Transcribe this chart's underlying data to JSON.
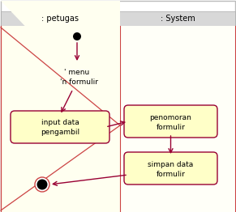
{
  "bg_color": "#ffffff",
  "header_bg": "#d3d3d3",
  "petugas_label": ": petugas",
  "system_label": ": System",
  "activity_bg": "#ffffc8",
  "activity_border": "#990033",
  "arrow_color": "#990033",
  "divider_color": "#cc4444",
  "triangle_fill": "#fffff0",
  "menu_line1": "' menu",
  "menu_line2": "'n formulir",
  "input_line1": "input data",
  "input_line2": "pengambil",
  "penomoran_line1": "penomoran",
  "penomoran_line2": "formulir",
  "simpan_line1": "simpan data",
  "simpan_line2": "formulir",
  "fig_width": 2.91,
  "fig_height": 2.62,
  "dpi": 100
}
